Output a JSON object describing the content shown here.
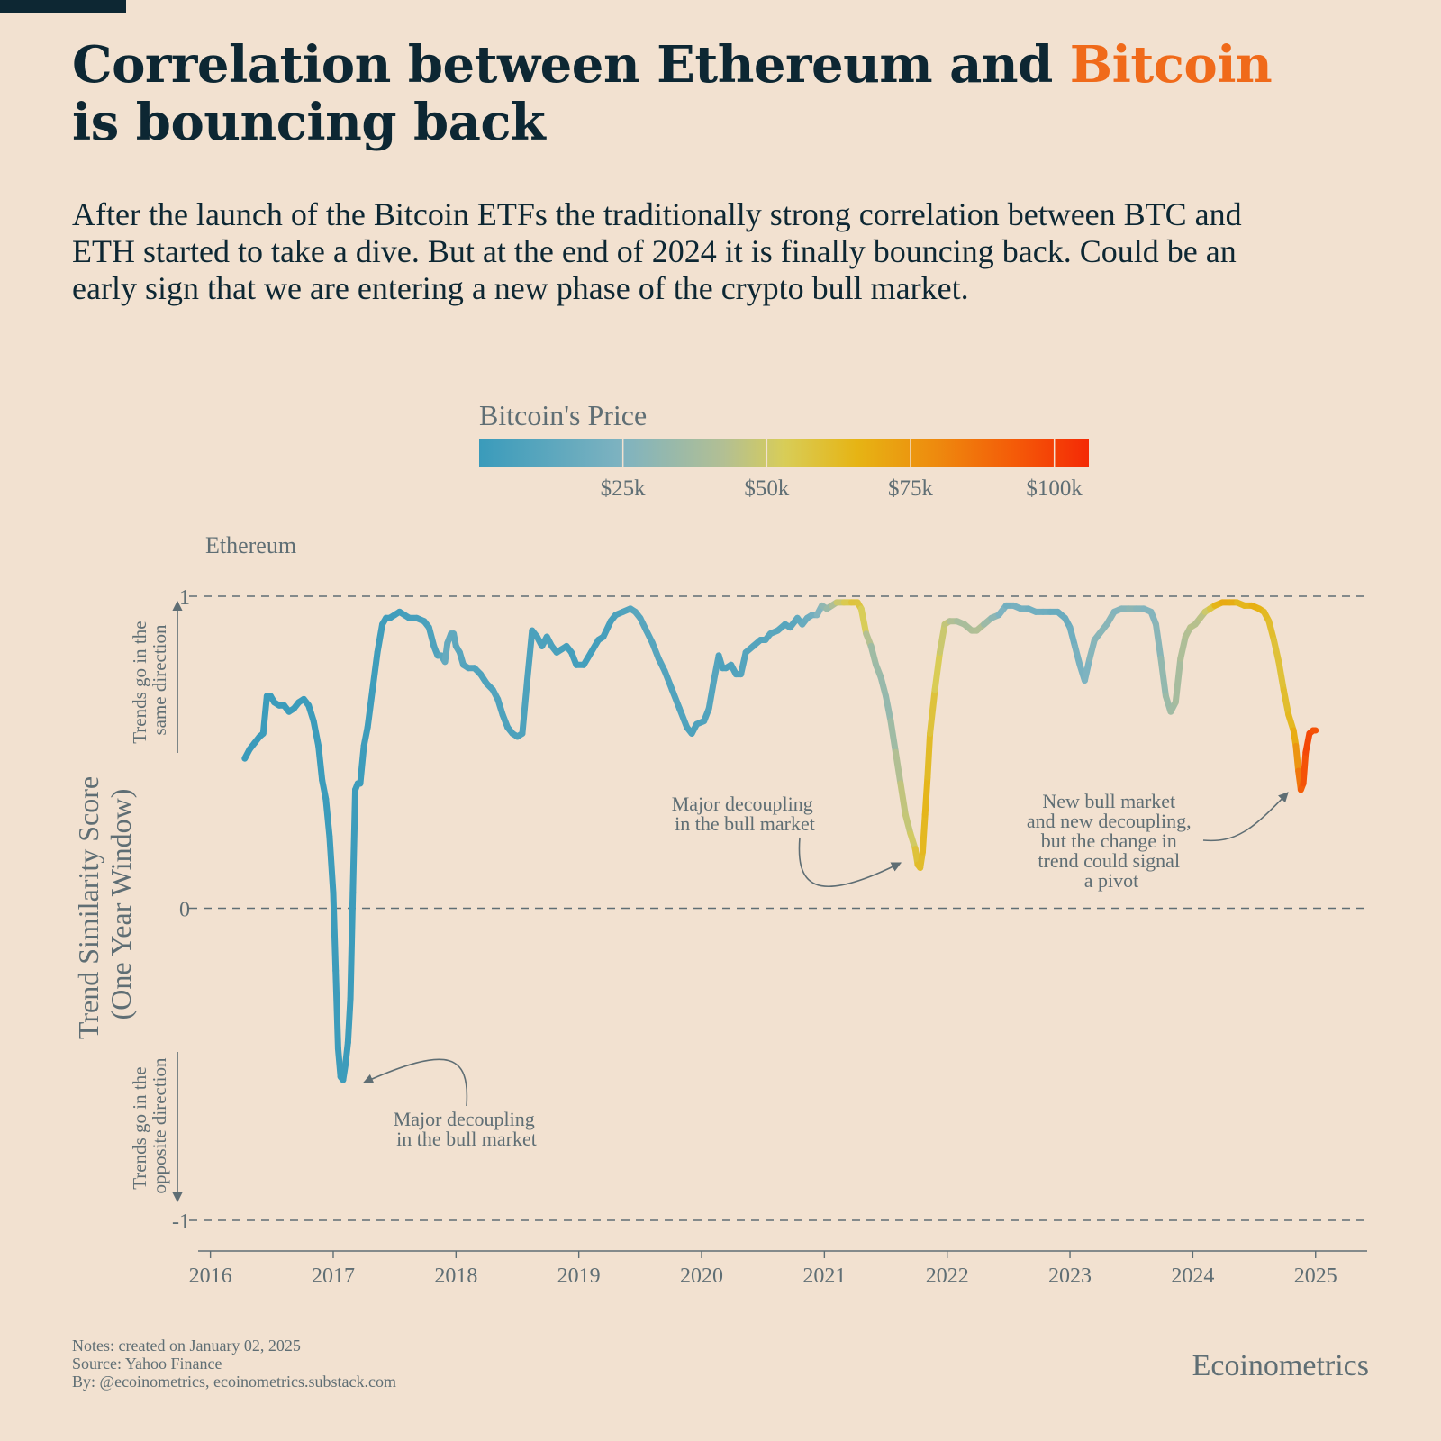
{
  "header": {
    "title_part1": "Correlation between Ethereum and ",
    "title_accent": "Bitcoin",
    "title_part2": "is bouncing back",
    "subtitle": "After the launch of the Bitcoin ETFs the traditionally strong correlation between BTC and ETH started to take a dive. But at the end of 2024 it is finally bouncing back. Could be an early sign that we are entering a new phase of the crypto bull market."
  },
  "colors": {
    "background": "#f2e1d0",
    "title": "#0d2733",
    "accent": "#f06a1a",
    "muted": "#5f6e74",
    "gradient": [
      "#3a9bbb",
      "#7fb3c0",
      "#b2bf94",
      "#d8cd58",
      "#e6b414",
      "#ee8a0e",
      "#f45a08",
      "#f42a05"
    ]
  },
  "chart_data": {
    "type": "line",
    "title": "Bitcoin's Price",
    "series_label": "Ethereum",
    "ylabel": "Trend Similarity Score (One Year Window)",
    "ylim": [
      -1,
      1
    ],
    "yticks": [
      1,
      0,
      -1
    ],
    "ytick_labels": [
      "1",
      "0",
      "-1"
    ],
    "xlim": [
      2015.9,
      2025.42
    ],
    "xticks": [
      2016,
      2017,
      2018,
      2019,
      2020,
      2021,
      2022,
      2023,
      2024,
      2025
    ],
    "xtick_labels": [
      "2016",
      "2017",
      "2018",
      "2019",
      "2020",
      "2021",
      "2022",
      "2023",
      "2024",
      "2025"
    ],
    "direction_labels": {
      "up": [
        "Trends go in the",
        "same direction"
      ],
      "down": [
        "Trends go in the",
        "opposite direction"
      ]
    },
    "colorbar": {
      "label": "Bitcoin's Price",
      "range": [
        0,
        106000
      ],
      "ticks": [
        25000,
        50000,
        75000,
        100000
      ],
      "tick_labels": [
        "$25k",
        "$50k",
        "$75k",
        "$100k"
      ]
    },
    "annotations": [
      {
        "lines": [
          "Major decoupling",
          "in the bull market"
        ],
        "target": [
          2017.07,
          -0.55
        ]
      },
      {
        "lines": [
          "Major decoupling",
          "in the bull market"
        ],
        "target": [
          2021.77,
          0.14
        ]
      },
      {
        "lines": [
          "New bull market",
          "and new decoupling,",
          "but the change in",
          "trend could signal",
          "a pivot"
        ],
        "target": [
          2024.88,
          0.38
        ]
      }
    ],
    "points": [
      {
        "x": 2016.28,
        "y": 0.48,
        "btc": 430
      },
      {
        "x": 2016.32,
        "y": 0.51,
        "btc": 440
      },
      {
        "x": 2016.36,
        "y": 0.53,
        "btc": 450
      },
      {
        "x": 2016.4,
        "y": 0.55,
        "btc": 460
      },
      {
        "x": 2016.43,
        "y": 0.56,
        "btc": 500
      },
      {
        "x": 2016.46,
        "y": 0.68,
        "btc": 600
      },
      {
        "x": 2016.49,
        "y": 0.68,
        "btc": 650
      },
      {
        "x": 2016.52,
        "y": 0.66,
        "btc": 660
      },
      {
        "x": 2016.56,
        "y": 0.65,
        "btc": 650
      },
      {
        "x": 2016.6,
        "y": 0.65,
        "btc": 600
      },
      {
        "x": 2016.64,
        "y": 0.63,
        "btc": 580
      },
      {
        "x": 2016.68,
        "y": 0.64,
        "btc": 600
      },
      {
        "x": 2016.72,
        "y": 0.66,
        "btc": 620
      },
      {
        "x": 2016.76,
        "y": 0.67,
        "btc": 640
      },
      {
        "x": 2016.8,
        "y": 0.65,
        "btc": 700
      },
      {
        "x": 2016.84,
        "y": 0.6,
        "btc": 720
      },
      {
        "x": 2016.88,
        "y": 0.52,
        "btc": 750
      },
      {
        "x": 2016.91,
        "y": 0.41,
        "btc": 780
      },
      {
        "x": 2016.94,
        "y": 0.35,
        "btc": 850
      },
      {
        "x": 2016.97,
        "y": 0.23,
        "btc": 900
      },
      {
        "x": 2017.0,
        "y": 0.05,
        "btc": 1000
      },
      {
        "x": 2017.02,
        "y": -0.2,
        "btc": 950
      },
      {
        "x": 2017.04,
        "y": -0.45,
        "btc": 900
      },
      {
        "x": 2017.06,
        "y": -0.54,
        "btc": 920
      },
      {
        "x": 2017.08,
        "y": -0.55,
        "btc": 950
      },
      {
        "x": 2017.1,
        "y": -0.5,
        "btc": 1000
      },
      {
        "x": 2017.12,
        "y": -0.43,
        "btc": 1050
      },
      {
        "x": 2017.14,
        "y": -0.29,
        "btc": 1100
      },
      {
        "x": 2017.16,
        "y": 0.05,
        "btc": 1150
      },
      {
        "x": 2017.18,
        "y": 0.38,
        "btc": 1200
      },
      {
        "x": 2017.2,
        "y": 0.4,
        "btc": 1150
      },
      {
        "x": 2017.22,
        "y": 0.4,
        "btc": 1100
      },
      {
        "x": 2017.25,
        "y": 0.52,
        "btc": 1150
      },
      {
        "x": 2017.28,
        "y": 0.58,
        "btc": 1250
      },
      {
        "x": 2017.32,
        "y": 0.7,
        "btc": 1400
      },
      {
        "x": 2017.36,
        "y": 0.82,
        "btc": 1800
      },
      {
        "x": 2017.4,
        "y": 0.91,
        "btc": 2200
      },
      {
        "x": 2017.43,
        "y": 0.93,
        "btc": 2500
      },
      {
        "x": 2017.46,
        "y": 0.93,
        "btc": 2700
      },
      {
        "x": 2017.5,
        "y": 0.94,
        "btc": 2500
      },
      {
        "x": 2017.54,
        "y": 0.95,
        "btc": 2700
      },
      {
        "x": 2017.58,
        "y": 0.94,
        "btc": 3200
      },
      {
        "x": 2017.62,
        "y": 0.93,
        "btc": 4200
      },
      {
        "x": 2017.68,
        "y": 0.93,
        "btc": 4300
      },
      {
        "x": 2017.74,
        "y": 0.92,
        "btc": 5000
      },
      {
        "x": 2017.78,
        "y": 0.9,
        "btc": 6500
      },
      {
        "x": 2017.82,
        "y": 0.84,
        "btc": 7500
      },
      {
        "x": 2017.85,
        "y": 0.81,
        "btc": 8000
      },
      {
        "x": 2017.88,
        "y": 0.81,
        "btc": 10000
      },
      {
        "x": 2017.91,
        "y": 0.79,
        "btc": 15000
      },
      {
        "x": 2017.93,
        "y": 0.85,
        "btc": 16000
      },
      {
        "x": 2017.96,
        "y": 0.88,
        "btc": 14000
      },
      {
        "x": 2017.98,
        "y": 0.88,
        "btc": 13500
      },
      {
        "x": 2018.0,
        "y": 0.84,
        "btc": 13000
      },
      {
        "x": 2018.03,
        "y": 0.82,
        "btc": 11500
      },
      {
        "x": 2018.06,
        "y": 0.78,
        "btc": 10000
      },
      {
        "x": 2018.1,
        "y": 0.77,
        "btc": 9000
      },
      {
        "x": 2018.15,
        "y": 0.77,
        "btc": 8500
      },
      {
        "x": 2018.2,
        "y": 0.75,
        "btc": 7500
      },
      {
        "x": 2018.25,
        "y": 0.72,
        "btc": 7000
      },
      {
        "x": 2018.3,
        "y": 0.7,
        "btc": 8500
      },
      {
        "x": 2018.34,
        "y": 0.67,
        "btc": 8000
      },
      {
        "x": 2018.38,
        "y": 0.62,
        "btc": 7500
      },
      {
        "x": 2018.42,
        "y": 0.58,
        "btc": 6500
      },
      {
        "x": 2018.46,
        "y": 0.56,
        "btc": 6300
      },
      {
        "x": 2018.5,
        "y": 0.55,
        "btc": 6400
      },
      {
        "x": 2018.54,
        "y": 0.56,
        "btc": 7500
      },
      {
        "x": 2018.58,
        "y": 0.73,
        "btc": 7000
      },
      {
        "x": 2018.62,
        "y": 0.89,
        "btc": 6500
      },
      {
        "x": 2018.66,
        "y": 0.87,
        "btc": 6400
      },
      {
        "x": 2018.7,
        "y": 0.84,
        "btc": 6500
      },
      {
        "x": 2018.74,
        "y": 0.87,
        "btc": 6500
      },
      {
        "x": 2018.78,
        "y": 0.84,
        "btc": 6400
      },
      {
        "x": 2018.82,
        "y": 0.82,
        "btc": 6300
      },
      {
        "x": 2018.86,
        "y": 0.83,
        "btc": 5500
      },
      {
        "x": 2018.9,
        "y": 0.84,
        "btc": 4200
      },
      {
        "x": 2018.94,
        "y": 0.82,
        "btc": 3800
      },
      {
        "x": 2018.98,
        "y": 0.78,
        "btc": 3700
      },
      {
        "x": 2019.04,
        "y": 0.78,
        "btc": 3600
      },
      {
        "x": 2019.1,
        "y": 0.82,
        "btc": 3700
      },
      {
        "x": 2019.16,
        "y": 0.86,
        "btc": 3900
      },
      {
        "x": 2019.2,
        "y": 0.87,
        "btc": 4100
      },
      {
        "x": 2019.26,
        "y": 0.92,
        "btc": 5000
      },
      {
        "x": 2019.3,
        "y": 0.94,
        "btc": 5500
      },
      {
        "x": 2019.36,
        "y": 0.95,
        "btc": 7500
      },
      {
        "x": 2019.42,
        "y": 0.96,
        "btc": 9000
      },
      {
        "x": 2019.46,
        "y": 0.95,
        "btc": 11000
      },
      {
        "x": 2019.5,
        "y": 0.93,
        "btc": 11500
      },
      {
        "x": 2019.55,
        "y": 0.89,
        "btc": 10000
      },
      {
        "x": 2019.6,
        "y": 0.85,
        "btc": 10500
      },
      {
        "x": 2019.65,
        "y": 0.8,
        "btc": 10000
      },
      {
        "x": 2019.7,
        "y": 0.76,
        "btc": 8500
      },
      {
        "x": 2019.76,
        "y": 0.7,
        "btc": 8000
      },
      {
        "x": 2019.82,
        "y": 0.64,
        "btc": 9000
      },
      {
        "x": 2019.88,
        "y": 0.58,
        "btc": 7500
      },
      {
        "x": 2019.92,
        "y": 0.56,
        "btc": 7200
      },
      {
        "x": 2019.96,
        "y": 0.59,
        "btc": 7200
      },
      {
        "x": 2020.02,
        "y": 0.6,
        "btc": 8000
      },
      {
        "x": 2020.06,
        "y": 0.64,
        "btc": 9000
      },
      {
        "x": 2020.1,
        "y": 0.73,
        "btc": 10000
      },
      {
        "x": 2020.14,
        "y": 0.81,
        "btc": 9500
      },
      {
        "x": 2020.17,
        "y": 0.77,
        "btc": 6000
      },
      {
        "x": 2020.2,
        "y": 0.77,
        "btc": 6500
      },
      {
        "x": 2020.24,
        "y": 0.78,
        "btc": 7000
      },
      {
        "x": 2020.28,
        "y": 0.75,
        "btc": 8000
      },
      {
        "x": 2020.32,
        "y": 0.75,
        "btc": 9000
      },
      {
        "x": 2020.36,
        "y": 0.82,
        "btc": 9500
      },
      {
        "x": 2020.42,
        "y": 0.84,
        "btc": 9500
      },
      {
        "x": 2020.48,
        "y": 0.86,
        "btc": 9300
      },
      {
        "x": 2020.52,
        "y": 0.86,
        "btc": 9200
      },
      {
        "x": 2020.56,
        "y": 0.88,
        "btc": 11000
      },
      {
        "x": 2020.62,
        "y": 0.89,
        "btc": 11500
      },
      {
        "x": 2020.68,
        "y": 0.91,
        "btc": 10500
      },
      {
        "x": 2020.72,
        "y": 0.9,
        "btc": 10800
      },
      {
        "x": 2020.78,
        "y": 0.93,
        "btc": 13000
      },
      {
        "x": 2020.82,
        "y": 0.91,
        "btc": 15500
      },
      {
        "x": 2020.86,
        "y": 0.93,
        "btc": 18000
      },
      {
        "x": 2020.9,
        "y": 0.94,
        "btc": 19000
      },
      {
        "x": 2020.94,
        "y": 0.94,
        "btc": 23000
      },
      {
        "x": 2020.98,
        "y": 0.97,
        "btc": 29000
      },
      {
        "x": 2021.02,
        "y": 0.96,
        "btc": 33000
      },
      {
        "x": 2021.06,
        "y": 0.97,
        "btc": 36000
      },
      {
        "x": 2021.1,
        "y": 0.98,
        "btc": 46000
      },
      {
        "x": 2021.16,
        "y": 0.98,
        "btc": 52000
      },
      {
        "x": 2021.22,
        "y": 0.98,
        "btc": 57000
      },
      {
        "x": 2021.27,
        "y": 0.98,
        "btc": 59000
      },
      {
        "x": 2021.3,
        "y": 0.96,
        "btc": 56000
      },
      {
        "x": 2021.34,
        "y": 0.88,
        "btc": 50000
      },
      {
        "x": 2021.38,
        "y": 0.84,
        "btc": 36000
      },
      {
        "x": 2021.42,
        "y": 0.78,
        "btc": 36000
      },
      {
        "x": 2021.46,
        "y": 0.74,
        "btc": 34000
      },
      {
        "x": 2021.5,
        "y": 0.68,
        "btc": 33000
      },
      {
        "x": 2021.54,
        "y": 0.6,
        "btc": 32000
      },
      {
        "x": 2021.58,
        "y": 0.5,
        "btc": 40000
      },
      {
        "x": 2021.62,
        "y": 0.4,
        "btc": 45000
      },
      {
        "x": 2021.66,
        "y": 0.3,
        "btc": 48000
      },
      {
        "x": 2021.7,
        "y": 0.24,
        "btc": 47000
      },
      {
        "x": 2021.74,
        "y": 0.19,
        "btc": 55000
      },
      {
        "x": 2021.76,
        "y": 0.14,
        "btc": 62000
      },
      {
        "x": 2021.78,
        "y": 0.13,
        "btc": 61000
      },
      {
        "x": 2021.8,
        "y": 0.18,
        "btc": 62000
      },
      {
        "x": 2021.82,
        "y": 0.3,
        "btc": 65000
      },
      {
        "x": 2021.84,
        "y": 0.42,
        "btc": 64000
      },
      {
        "x": 2021.86,
        "y": 0.56,
        "btc": 60000
      },
      {
        "x": 2021.9,
        "y": 0.7,
        "btc": 57000
      },
      {
        "x": 2021.94,
        "y": 0.82,
        "btc": 50000
      },
      {
        "x": 2021.98,
        "y": 0.91,
        "btc": 48000
      },
      {
        "x": 2022.02,
        "y": 0.92,
        "btc": 46000
      },
      {
        "x": 2022.08,
        "y": 0.92,
        "btc": 38000
      },
      {
        "x": 2022.14,
        "y": 0.91,
        "btc": 40000
      },
      {
        "x": 2022.2,
        "y": 0.89,
        "btc": 39000
      },
      {
        "x": 2022.24,
        "y": 0.89,
        "btc": 44000
      },
      {
        "x": 2022.3,
        "y": 0.91,
        "btc": 40000
      },
      {
        "x": 2022.36,
        "y": 0.93,
        "btc": 30000
      },
      {
        "x": 2022.42,
        "y": 0.94,
        "btc": 30000
      },
      {
        "x": 2022.48,
        "y": 0.97,
        "btc": 20000
      },
      {
        "x": 2022.54,
        "y": 0.97,
        "btc": 21000
      },
      {
        "x": 2022.6,
        "y": 0.96,
        "btc": 23000
      },
      {
        "x": 2022.66,
        "y": 0.96,
        "btc": 20000
      },
      {
        "x": 2022.72,
        "y": 0.95,
        "btc": 19500
      },
      {
        "x": 2022.78,
        "y": 0.95,
        "btc": 20500
      },
      {
        "x": 2022.84,
        "y": 0.95,
        "btc": 16500
      },
      {
        "x": 2022.9,
        "y": 0.95,
        "btc": 17000
      },
      {
        "x": 2022.96,
        "y": 0.93,
        "btc": 16800
      },
      {
        "x": 2023.0,
        "y": 0.9,
        "btc": 17000
      },
      {
        "x": 2023.04,
        "y": 0.84,
        "btc": 22000
      },
      {
        "x": 2023.08,
        "y": 0.78,
        "btc": 23000
      },
      {
        "x": 2023.12,
        "y": 0.73,
        "btc": 22500
      },
      {
        "x": 2023.16,
        "y": 0.8,
        "btc": 27000
      },
      {
        "x": 2023.2,
        "y": 0.86,
        "btc": 28000
      },
      {
        "x": 2023.24,
        "y": 0.88,
        "btc": 28500
      },
      {
        "x": 2023.3,
        "y": 0.91,
        "btc": 29000
      },
      {
        "x": 2023.36,
        "y": 0.95,
        "btc": 27000
      },
      {
        "x": 2023.42,
        "y": 0.96,
        "btc": 26500
      },
      {
        "x": 2023.48,
        "y": 0.96,
        "btc": 30000
      },
      {
        "x": 2023.54,
        "y": 0.96,
        "btc": 29500
      },
      {
        "x": 2023.6,
        "y": 0.96,
        "btc": 26000
      },
      {
        "x": 2023.66,
        "y": 0.95,
        "btc": 26500
      },
      {
        "x": 2023.7,
        "y": 0.91,
        "btc": 27000
      },
      {
        "x": 2023.74,
        "y": 0.8,
        "btc": 30000
      },
      {
        "x": 2023.78,
        "y": 0.68,
        "btc": 34000
      },
      {
        "x": 2023.82,
        "y": 0.63,
        "btc": 36000
      },
      {
        "x": 2023.86,
        "y": 0.66,
        "btc": 37000
      },
      {
        "x": 2023.9,
        "y": 0.8,
        "btc": 40000
      },
      {
        "x": 2023.94,
        "y": 0.87,
        "btc": 42000
      },
      {
        "x": 2023.98,
        "y": 0.9,
        "btc": 43000
      },
      {
        "x": 2024.02,
        "y": 0.91,
        "btc": 45000
      },
      {
        "x": 2024.06,
        "y": 0.93,
        "btc": 42000
      },
      {
        "x": 2024.1,
        "y": 0.95,
        "btc": 48000
      },
      {
        "x": 2024.14,
        "y": 0.96,
        "btc": 52000
      },
      {
        "x": 2024.18,
        "y": 0.97,
        "btc": 62000
      },
      {
        "x": 2024.24,
        "y": 0.98,
        "btc": 68000
      },
      {
        "x": 2024.3,
        "y": 0.98,
        "btc": 70000
      },
      {
        "x": 2024.36,
        "y": 0.98,
        "btc": 66000
      },
      {
        "x": 2024.42,
        "y": 0.97,
        "btc": 62000
      },
      {
        "x": 2024.48,
        "y": 0.97,
        "btc": 67000
      },
      {
        "x": 2024.54,
        "y": 0.96,
        "btc": 68000
      },
      {
        "x": 2024.58,
        "y": 0.95,
        "btc": 64000
      },
      {
        "x": 2024.62,
        "y": 0.92,
        "btc": 62000
      },
      {
        "x": 2024.66,
        "y": 0.86,
        "btc": 60000
      },
      {
        "x": 2024.7,
        "y": 0.79,
        "btc": 58000
      },
      {
        "x": 2024.74,
        "y": 0.7,
        "btc": 60000
      },
      {
        "x": 2024.78,
        "y": 0.62,
        "btc": 62000
      },
      {
        "x": 2024.82,
        "y": 0.57,
        "btc": 65000
      },
      {
        "x": 2024.84,
        "y": 0.52,
        "btc": 72000
      },
      {
        "x": 2024.86,
        "y": 0.44,
        "btc": 80000
      },
      {
        "x": 2024.88,
        "y": 0.38,
        "btc": 90000
      },
      {
        "x": 2024.9,
        "y": 0.4,
        "btc": 95000
      },
      {
        "x": 2024.92,
        "y": 0.5,
        "btc": 96000
      },
      {
        "x": 2024.95,
        "y": 0.56,
        "btc": 100000
      },
      {
        "x": 2024.98,
        "y": 0.57,
        "btc": 96000
      },
      {
        "x": 2025.0,
        "y": 0.57,
        "btc": 95000
      }
    ]
  },
  "footer": {
    "notes": "Notes: created on January 02, 2025",
    "source": "Source: Yahoo Finance",
    "by": "By: @ecoinometrics, ecoinometrics.substack.com",
    "brand": "Ecoinometrics"
  }
}
